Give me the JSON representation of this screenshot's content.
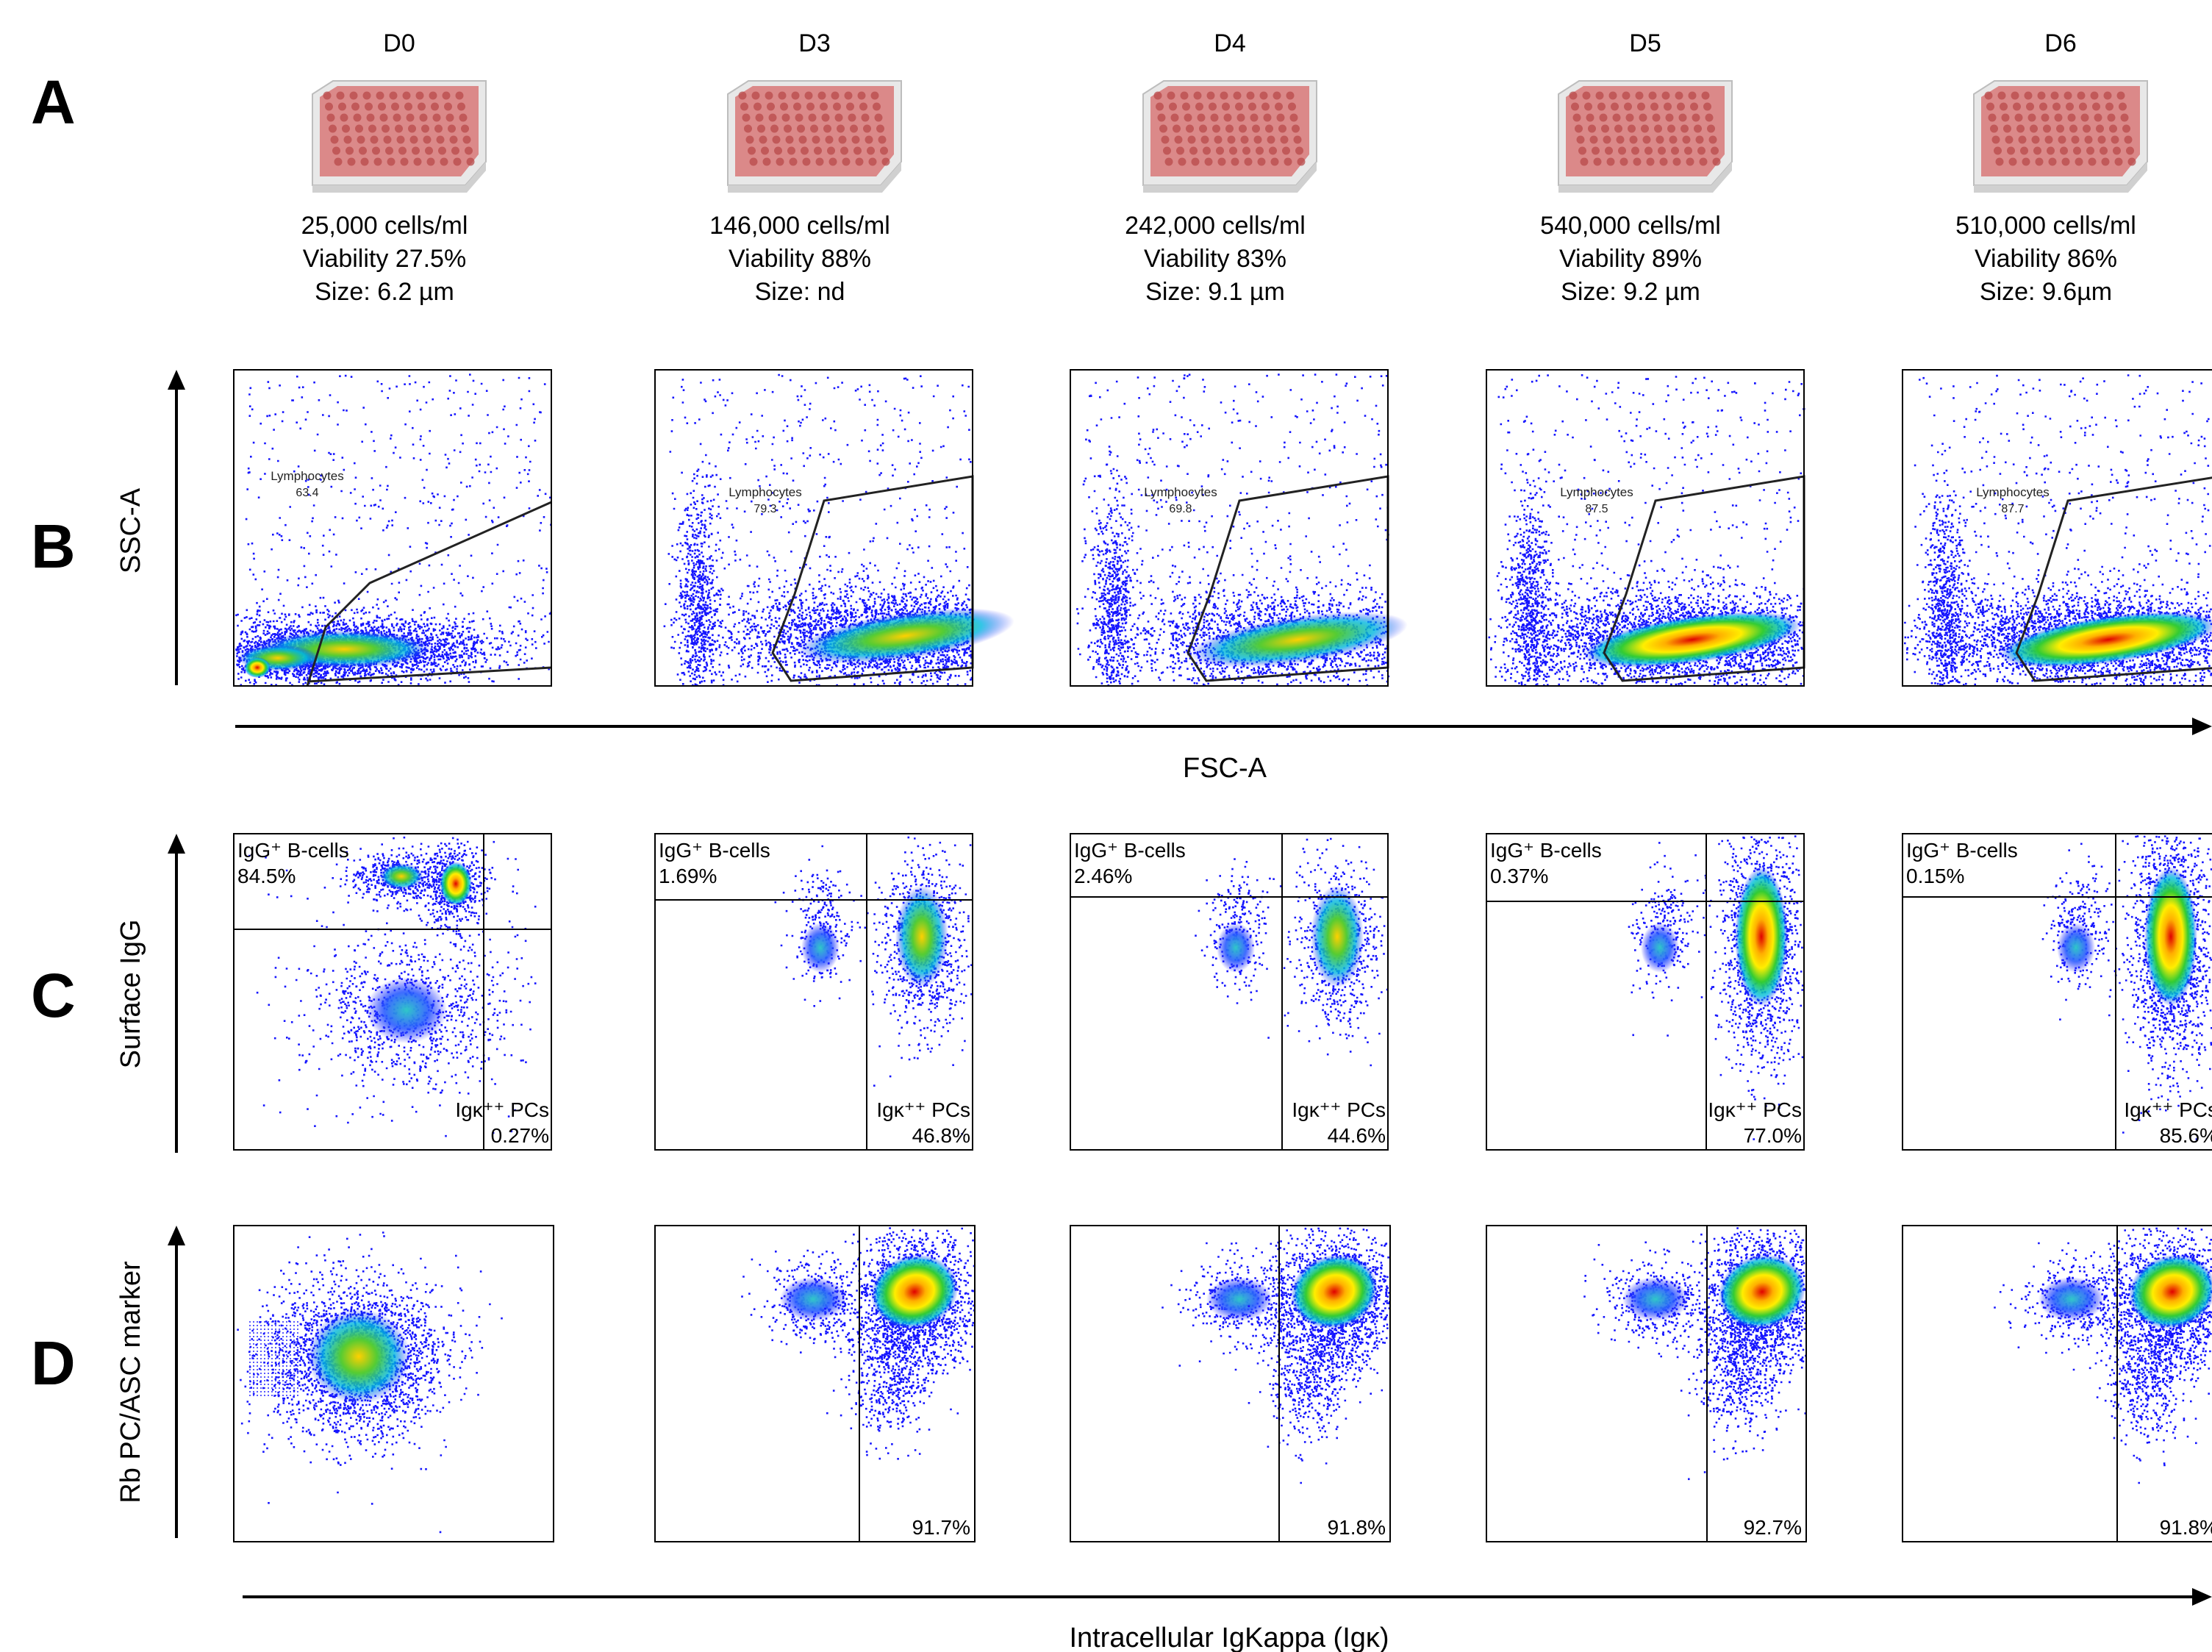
{
  "panel_letters": [
    "A",
    "B",
    "C",
    "D"
  ],
  "days": [
    {
      "label": "D0",
      "cells": "25,000 cells/ml",
      "viability": "Viability 27.5%",
      "size": "Size: 6.2 µm",
      "lymphocytes": "63.4",
      "igg_b": "84.5%",
      "igk_pc": "0.27%",
      "rb_pct": ""
    },
    {
      "label": "D3",
      "cells": "146,000 cells/ml",
      "viability": "Viability 88%",
      "size": "Size: nd",
      "lymphocytes": "79.3",
      "igg_b": "1.69%",
      "igk_pc": "46.8%",
      "rb_pct": "91.7%"
    },
    {
      "label": "D4",
      "cells": "242,000 cells/ml",
      "viability": "Viability 83%",
      "size": "Size: 9.1 µm",
      "lymphocytes": "69.8",
      "igg_b": "2.46%",
      "igk_pc": "44.6%",
      "rb_pct": "91.8%"
    },
    {
      "label": "D5",
      "cells": "540,000 cells/ml",
      "viability": "Viability 89%",
      "size": "Size: 9.2 µm",
      "lymphocytes": "87.5",
      "igg_b": "0.37%",
      "igk_pc": "77.0%",
      "rb_pct": "92.7%"
    },
    {
      "label": "D6",
      "cells": "510,000 cells/ml",
      "viability": "Viability 86%",
      "size": "Size: 9.6µm",
      "lymphocytes": "87.7",
      "igg_b": "0.15%",
      "igk_pc": "85.6%",
      "rb_pct": "91.8%"
    }
  ],
  "gate_labels": {
    "lymphocytes": "Lymphocytes",
    "igg_b": "IgG⁺ B-cells",
    "igk_pc": "Igκ⁺⁺ PCs"
  },
  "axes": {
    "b_y": "SSC-A",
    "b_x": "FSC-A",
    "c_y": "Surface IgG",
    "d_y": "Rb PC/ASC marker",
    "cd_x": "Intracellular IgKappa (Igκ)"
  },
  "colors": {
    "density_low": "#1515ff",
    "density_mid": "#00c8c8",
    "density_green": "#33cc33",
    "density_high": "#ffe000",
    "density_peak": "#e00000",
    "plate_fill": "#d87878"
  }
}
